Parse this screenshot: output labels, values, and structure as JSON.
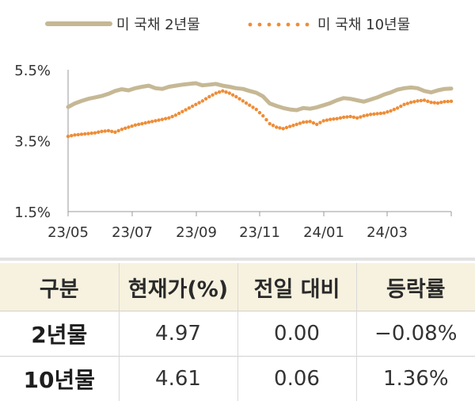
{
  "chart_data": {
    "type": "line",
    "title": "",
    "xlabel": "",
    "ylabel": "",
    "ylim": [
      1.5,
      5.5
    ],
    "y_ticks": [
      "5.5%",
      "3.5%",
      "1.5%"
    ],
    "x_ticks": [
      "23/05",
      "23/07",
      "23/09",
      "23/11",
      "24/01",
      "24/03"
    ],
    "series": [
      {
        "name": "미 국채 2년물",
        "style": "solid",
        "color": "#c6b895",
        "values": [
          4.45,
          4.55,
          4.62,
          4.68,
          4.72,
          4.76,
          4.82,
          4.9,
          4.95,
          4.92,
          4.98,
          5.02,
          5.05,
          4.98,
          4.96,
          5.02,
          5.05,
          5.08,
          5.1,
          5.12,
          5.06,
          5.08,
          5.1,
          5.05,
          5.02,
          4.98,
          4.96,
          4.9,
          4.85,
          4.75,
          4.55,
          4.48,
          4.42,
          4.38,
          4.36,
          4.42,
          4.4,
          4.44,
          4.5,
          4.56,
          4.64,
          4.7,
          4.68,
          4.64,
          4.6,
          4.66,
          4.72,
          4.8,
          4.86,
          4.94,
          4.98,
          5.0,
          4.98,
          4.9,
          4.86,
          4.92,
          4.96,
          4.97
        ]
      },
      {
        "name": "미 국채 10년물",
        "style": "dotted",
        "color": "#ee8d38",
        "values": [
          3.62,
          3.66,
          3.68,
          3.7,
          3.72,
          3.76,
          3.78,
          3.74,
          3.82,
          3.88,
          3.94,
          3.98,
          4.02,
          4.06,
          4.1,
          4.14,
          4.22,
          4.32,
          4.42,
          4.52,
          4.62,
          4.74,
          4.84,
          4.9,
          4.84,
          4.74,
          4.62,
          4.5,
          4.38,
          4.2,
          3.98,
          3.88,
          3.84,
          3.9,
          3.96,
          4.02,
          4.04,
          3.96,
          4.06,
          4.1,
          4.12,
          4.16,
          4.18,
          4.14,
          4.2,
          4.24,
          4.26,
          4.28,
          4.34,
          4.42,
          4.52,
          4.58,
          4.62,
          4.64,
          4.58,
          4.56,
          4.6,
          4.61
        ]
      }
    ]
  },
  "table": {
    "headers": [
      "구분",
      "현재가(%)",
      "전일 대비",
      "등락률"
    ],
    "rows": [
      {
        "label": "2년물",
        "price": "4.97",
        "change": "0.00",
        "rate": "−0.08%"
      },
      {
        "label": "10년물",
        "price": "4.61",
        "change": "0.06",
        "rate": "1.36%"
      }
    ]
  },
  "colors": {
    "series_2y": "#c6b895",
    "series_10y": "#ee8d38",
    "table_header_bg": "#f7f2df"
  }
}
